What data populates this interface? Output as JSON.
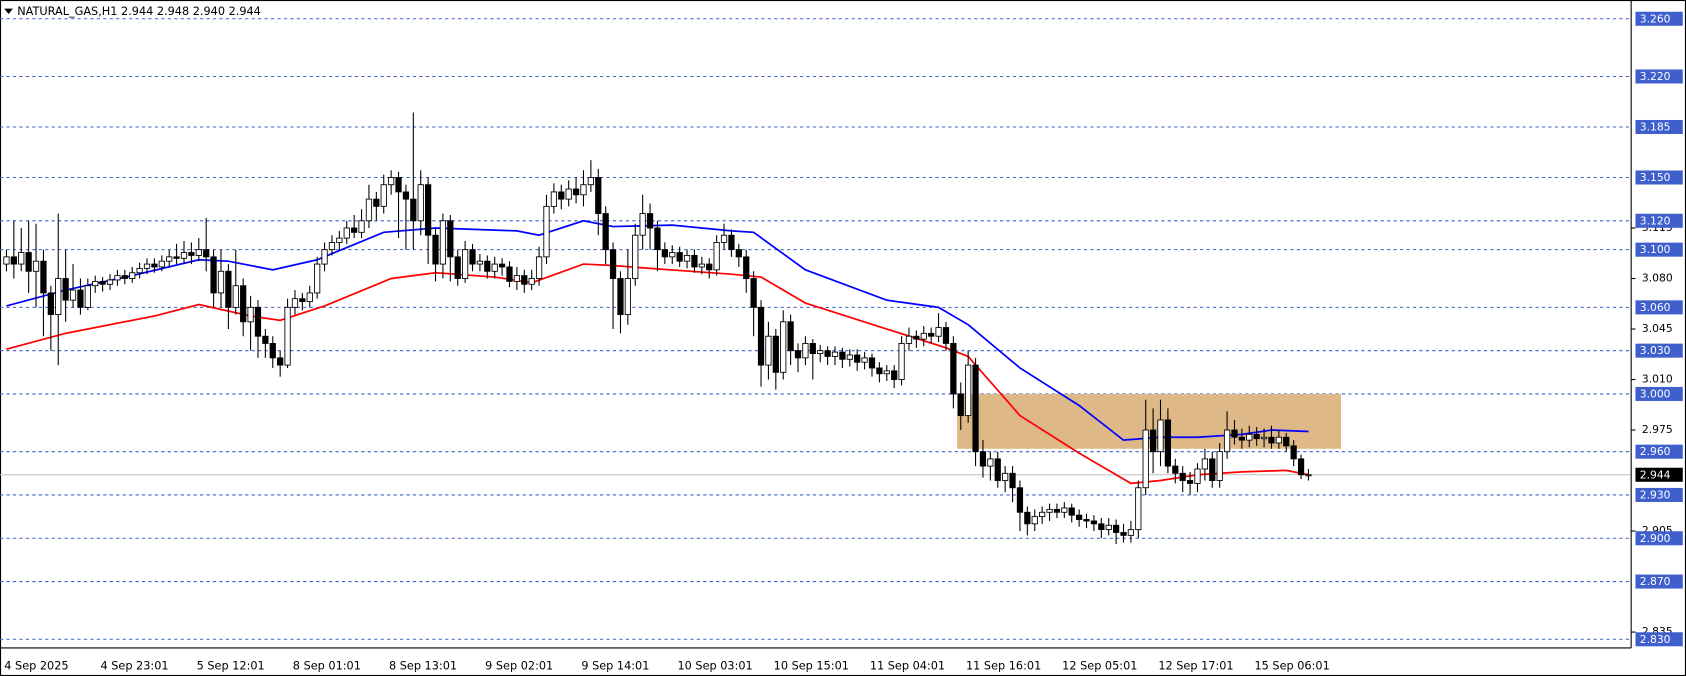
{
  "chart_data": {
    "type": "candlestick",
    "title": "NATURAL_GAS,H1  2.944 2.948 2.940 2.944",
    "categories": [
      "4 Sep 2025",
      null,
      null,
      null,
      null,
      null,
      null,
      null,
      null,
      null,
      null,
      null,
      null,
      "4 Sep 23:01",
      null,
      null,
      null,
      null,
      null,
      null,
      null,
      null,
      null,
      null,
      null,
      null,
      "5 Sep 12:01",
      null,
      null,
      null,
      null,
      null,
      null,
      null,
      null,
      null,
      null,
      null,
      null,
      "8 Sep 01:01",
      null,
      null,
      null,
      null,
      null,
      null,
      null,
      null,
      null,
      null,
      null,
      null,
      "8 Sep 13:01",
      null,
      null,
      null,
      null,
      null,
      null,
      null,
      null,
      null,
      null,
      null,
      null,
      "9 Sep 02:01",
      null,
      null,
      null,
      null,
      null,
      null,
      null,
      null,
      null,
      null,
      null,
      null,
      "9 Sep 14:01",
      null,
      null,
      null,
      null,
      null,
      null,
      null,
      null,
      null,
      null,
      null,
      null,
      "10 Sep 03:01",
      null,
      null,
      null,
      null,
      null,
      null,
      null,
      null,
      null,
      null,
      null,
      null,
      "10 Sep 15:01",
      null,
      null,
      null,
      null,
      null,
      null,
      null,
      null,
      null,
      null,
      null,
      null,
      "11 Sep 04:01",
      null,
      null,
      null,
      null,
      null,
      null,
      null,
      null,
      null,
      null,
      null,
      null,
      "11 Sep 16:01",
      null,
      null,
      null,
      null,
      null,
      null,
      null,
      null,
      null,
      null,
      null,
      null,
      "12 Sep 05:01",
      null,
      null,
      null,
      null,
      null,
      null,
      null,
      null,
      null,
      null,
      null,
      null,
      "12 Sep 17:01",
      null,
      null,
      null,
      null,
      null,
      null,
      null,
      null,
      null,
      null,
      null,
      null,
      "15 Sep 06:01",
      null,
      null,
      null,
      null,
      null,
      null,
      null
    ],
    "series": [
      {
        "type": "candlestick",
        "up_color": "#ffffff",
        "down_color": "#000000",
        "open": [
          3.09,
          3.095,
          3.09,
          3.098,
          3.085,
          3.092,
          3.07,
          3.055,
          3.08,
          3.065,
          3.072,
          3.06,
          3.075,
          3.078,
          3.076,
          3.079,
          3.082,
          3.08,
          3.084,
          3.087,
          3.09,
          3.088,
          3.092,
          3.095,
          3.094,
          3.098,
          3.096,
          3.1,
          3.095,
          3.07,
          3.085,
          3.06,
          3.075,
          3.05,
          3.06,
          3.04,
          3.035,
          3.025,
          3.02,
          3.06,
          3.066,
          3.064,
          3.07,
          3.09,
          3.1,
          3.105,
          3.108,
          3.115,
          3.112,
          3.12,
          3.135,
          3.13,
          3.145,
          3.15,
          3.14,
          3.135,
          3.12,
          3.145,
          3.11,
          3.09,
          3.12,
          3.095,
          3.08,
          3.1,
          3.09,
          3.092,
          3.085,
          3.09,
          3.088,
          3.078,
          3.082,
          3.076,
          3.08,
          3.095,
          3.13,
          3.14,
          3.135,
          3.142,
          3.138,
          3.145,
          3.15,
          3.125,
          3.1,
          3.08,
          3.055,
          3.08,
          3.11,
          3.125,
          3.115,
          3.1,
          3.095,
          3.098,
          3.092,
          3.096,
          3.088,
          3.09,
          3.086,
          3.105,
          3.11,
          3.1,
          3.095,
          3.08,
          3.06,
          3.02,
          3.04,
          3.015,
          3.05,
          3.03,
          3.025,
          3.035,
          3.028,
          3.03,
          3.026,
          3.029,
          3.024,
          3.027,
          3.022,
          3.025,
          3.018,
          3.014,
          3.016,
          3.01,
          3.035,
          3.04,
          3.038,
          3.042,
          3.04,
          3.046,
          3.035,
          3.0,
          2.985,
          3.02,
          2.96,
          2.95,
          2.955,
          2.94,
          2.945,
          2.935,
          2.918,
          2.91,
          2.915,
          2.918,
          2.92,
          2.918,
          2.921,
          2.916,
          2.913,
          2.912,
          2.91,
          2.906,
          2.909,
          2.904,
          2.902,
          2.906,
          2.935,
          2.975,
          2.96,
          2.982,
          2.95,
          2.945,
          2.94,
          2.938,
          2.948,
          2.955,
          2.94,
          2.96,
          2.975,
          2.97,
          2.968,
          2.972,
          2.969,
          2.97,
          2.966,
          2.97,
          2.964,
          2.955,
          2.944
        ],
        "high": [
          3.1,
          3.12,
          3.115,
          3.12,
          3.118,
          3.1,
          3.075,
          3.125,
          3.1,
          3.09,
          3.08,
          3.08,
          3.082,
          3.081,
          3.083,
          3.086,
          3.086,
          3.088,
          3.091,
          3.094,
          3.094,
          3.096,
          3.1,
          3.104,
          3.106,
          3.105,
          3.108,
          3.122,
          3.1,
          3.1,
          3.09,
          3.1,
          3.08,
          3.068,
          3.065,
          3.045,
          3.04,
          3.03,
          3.066,
          3.072,
          3.07,
          3.075,
          3.095,
          3.105,
          3.11,
          3.113,
          3.12,
          3.124,
          3.128,
          3.145,
          3.14,
          3.152,
          3.155,
          3.154,
          3.145,
          3.195,
          3.155,
          3.15,
          3.115,
          3.125,
          3.124,
          3.1,
          3.106,
          3.104,
          3.097,
          3.096,
          3.095,
          3.094,
          3.092,
          3.088,
          3.086,
          3.086,
          3.102,
          3.138,
          3.146,
          3.145,
          3.148,
          3.15,
          3.155,
          3.162,
          3.156,
          3.13,
          3.105,
          3.085,
          3.1,
          3.118,
          3.138,
          3.132,
          3.12,
          3.105,
          3.103,
          3.102,
          3.1,
          3.1,
          3.095,
          3.094,
          3.11,
          3.118,
          3.114,
          3.104,
          3.1,
          3.085,
          3.065,
          3.05,
          3.045,
          3.058,
          3.055,
          3.035,
          3.04,
          3.038,
          3.034,
          3.033,
          3.033,
          3.032,
          3.031,
          3.031,
          3.029,
          3.028,
          3.022,
          3.02,
          3.02,
          3.04,
          3.046,
          3.044,
          3.047,
          3.046,
          3.056,
          3.05,
          3.04,
          3.008,
          3.03,
          3.025,
          2.968,
          2.96,
          2.96,
          2.95,
          2.95,
          2.94,
          2.922,
          2.92,
          2.922,
          2.924,
          2.924,
          2.925,
          2.924,
          2.92,
          2.917,
          2.916,
          2.914,
          2.914,
          2.913,
          2.91,
          2.912,
          2.94,
          2.996,
          2.99,
          2.996,
          2.99,
          2.955,
          2.95,
          2.946,
          2.952,
          2.962,
          2.96,
          2.966,
          2.988,
          2.982,
          2.976,
          2.978,
          2.977,
          2.976,
          2.978,
          2.975,
          2.973,
          2.968,
          2.958,
          2.948
        ],
        "low": [
          3.085,
          3.08,
          3.085,
          3.07,
          3.06,
          3.04,
          3.03,
          3.02,
          3.05,
          3.06,
          3.055,
          3.058,
          3.07,
          3.071,
          3.072,
          3.075,
          3.076,
          3.077,
          3.08,
          3.083,
          3.084,
          3.085,
          3.088,
          3.09,
          3.09,
          3.09,
          3.092,
          3.085,
          3.06,
          3.06,
          3.045,
          3.055,
          3.04,
          3.03,
          3.025,
          3.025,
          3.018,
          3.012,
          3.018,
          3.055,
          3.058,
          3.06,
          3.066,
          3.085,
          3.096,
          3.1,
          3.104,
          3.108,
          3.108,
          3.115,
          3.12,
          3.125,
          3.138,
          3.108,
          3.1,
          3.1,
          3.11,
          3.09,
          3.078,
          3.08,
          3.078,
          3.075,
          3.077,
          3.085,
          3.085,
          3.08,
          3.08,
          3.082,
          3.074,
          3.072,
          3.07,
          3.072,
          3.075,
          3.09,
          3.125,
          3.128,
          3.13,
          3.132,
          3.13,
          3.14,
          3.11,
          3.09,
          3.045,
          3.042,
          3.048,
          3.075,
          3.1,
          3.1,
          3.085,
          3.09,
          3.09,
          3.088,
          3.087,
          3.084,
          3.083,
          3.08,
          3.082,
          3.1,
          3.095,
          3.088,
          3.07,
          3.04,
          3.005,
          3.01,
          3.003,
          3.01,
          3.02,
          3.015,
          3.02,
          3.01,
          3.022,
          3.02,
          3.02,
          3.018,
          3.019,
          3.016,
          3.017,
          3.012,
          3.008,
          3.009,
          3.004,
          3.006,
          3.03,
          3.032,
          3.033,
          3.035,
          3.036,
          3.03,
          2.99,
          2.975,
          2.98,
          2.95,
          2.942,
          2.94,
          2.935,
          2.932,
          2.925,
          2.905,
          2.902,
          2.905,
          2.91,
          2.912,
          2.914,
          2.914,
          2.911,
          2.908,
          2.907,
          2.905,
          2.9,
          2.902,
          2.896,
          2.897,
          2.897,
          2.9,
          2.93,
          2.945,
          2.95,
          2.945,
          2.938,
          2.932,
          2.93,
          2.932,
          2.94,
          2.935,
          2.935,
          2.955,
          2.965,
          2.962,
          2.963,
          2.964,
          2.963,
          2.962,
          2.962,
          2.96,
          2.95,
          2.941,
          2.94
        ],
        "close": [
          3.095,
          3.09,
          3.098,
          3.085,
          3.092,
          3.07,
          3.055,
          3.08,
          3.065,
          3.072,
          3.06,
          3.075,
          3.078,
          3.076,
          3.079,
          3.082,
          3.08,
          3.084,
          3.087,
          3.09,
          3.088,
          3.092,
          3.095,
          3.094,
          3.098,
          3.096,
          3.1,
          3.095,
          3.07,
          3.085,
          3.06,
          3.075,
          3.05,
          3.06,
          3.04,
          3.035,
          3.025,
          3.02,
          3.06,
          3.066,
          3.064,
          3.07,
          3.09,
          3.1,
          3.105,
          3.108,
          3.115,
          3.112,
          3.12,
          3.135,
          3.13,
          3.145,
          3.15,
          3.14,
          3.135,
          3.12,
          3.145,
          3.11,
          3.09,
          3.12,
          3.095,
          3.08,
          3.1,
          3.09,
          3.092,
          3.085,
          3.09,
          3.088,
          3.078,
          3.082,
          3.076,
          3.08,
          3.095,
          3.13,
          3.14,
          3.135,
          3.142,
          3.138,
          3.145,
          3.15,
          3.125,
          3.1,
          3.08,
          3.055,
          3.08,
          3.11,
          3.125,
          3.115,
          3.1,
          3.095,
          3.098,
          3.092,
          3.096,
          3.088,
          3.09,
          3.086,
          3.105,
          3.11,
          3.1,
          3.095,
          3.08,
          3.06,
          3.02,
          3.04,
          3.015,
          3.05,
          3.03,
          3.025,
          3.035,
          3.028,
          3.03,
          3.026,
          3.029,
          3.024,
          3.027,
          3.022,
          3.025,
          3.018,
          3.014,
          3.016,
          3.01,
          3.035,
          3.04,
          3.038,
          3.042,
          3.04,
          3.046,
          3.035,
          3.0,
          2.985,
          3.02,
          2.96,
          2.95,
          2.955,
          2.94,
          2.945,
          2.935,
          2.918,
          2.91,
          2.915,
          2.918,
          2.92,
          2.918,
          2.921,
          2.916,
          2.913,
          2.912,
          2.91,
          2.906,
          2.909,
          2.904,
          2.902,
          2.906,
          2.935,
          2.975,
          2.96,
          2.982,
          2.95,
          2.945,
          2.94,
          2.938,
          2.948,
          2.955,
          2.94,
          2.96,
          2.975,
          2.97,
          2.968,
          2.972,
          2.969,
          2.97,
          2.966,
          2.97,
          2.964,
          2.955,
          2.944,
          2.944
        ]
      },
      {
        "type": "line",
        "color": "#0000ff",
        "x": [
          0,
          8,
          17,
          26,
          30,
          36,
          42,
          51,
          58,
          69,
          72,
          78,
          82,
          90,
          98,
          101,
          108,
          119,
          126,
          130,
          137,
          145,
          151,
          156,
          161,
          167,
          171,
          176
        ],
        "values": [
          3.061,
          3.072,
          3.082,
          3.093,
          3.092,
          3.086,
          3.093,
          3.112,
          3.115,
          3.113,
          3.11,
          3.12,
          3.116,
          3.117,
          3.113,
          3.112,
          3.086,
          3.065,
          3.06,
          3.048,
          3.018,
          2.992,
          2.968,
          2.97,
          2.97,
          2.972,
          2.975,
          2.974
        ]
      },
      {
        "type": "line",
        "color": "#ff0000",
        "x": [
          0,
          8,
          20,
          26,
          33,
          37,
          43,
          52,
          58,
          66,
          71,
          78,
          82,
          87,
          98,
          102,
          108,
          119,
          127,
          130,
          137,
          145,
          152,
          156,
          161,
          167,
          173,
          176
        ],
        "values": [
          3.031,
          3.042,
          3.054,
          3.062,
          3.054,
          3.051,
          3.061,
          3.08,
          3.084,
          3.081,
          3.077,
          3.09,
          3.089,
          3.087,
          3.083,
          3.081,
          3.063,
          3.045,
          3.032,
          3.026,
          2.985,
          2.959,
          2.938,
          2.94,
          2.944,
          2.946,
          2.947,
          2.944
        ]
      }
    ],
    "zone": {
      "x": [
        128.5,
        180.4
      ],
      "y": [
        2.962,
        3.0
      ],
      "color": "#deb887"
    },
    "ylim": [
      2.824,
      3.273
    ],
    "yticks": [
      3.115,
      {
        "value": 3.08,
        "label": "3.080"
      },
      3.045,
      {
        "value": 3.01,
        "label": "3.010"
      },
      2.975,
      2.905,
      2.835
    ],
    "levels": [
      {
        "value": 3.26,
        "label": "3.260"
      },
      {
        "value": 3.22,
        "label": "3.220"
      },
      3.185,
      {
        "value": 3.15,
        "label": "3.150"
      },
      {
        "value": 3.12,
        "label": "3.120"
      },
      {
        "value": 3.1,
        "label": "3.100"
      },
      {
        "value": 3.06,
        "label": "3.060"
      },
      {
        "value": 3.03,
        "label": "3.030"
      },
      {
        "value": 3,
        "label": "3.000"
      },
      {
        "value": 2.96,
        "label": "2.960"
      },
      {
        "value": 2.93,
        "label": "2.930"
      },
      {
        "value": 2.9,
        "label": "2.900"
      },
      {
        "value": 2.87,
        "label": "2.870"
      },
      {
        "value": 2.83,
        "label": "2.830"
      }
    ],
    "level_color": "#3f5fcc",
    "last_price": 2.944
  }
}
